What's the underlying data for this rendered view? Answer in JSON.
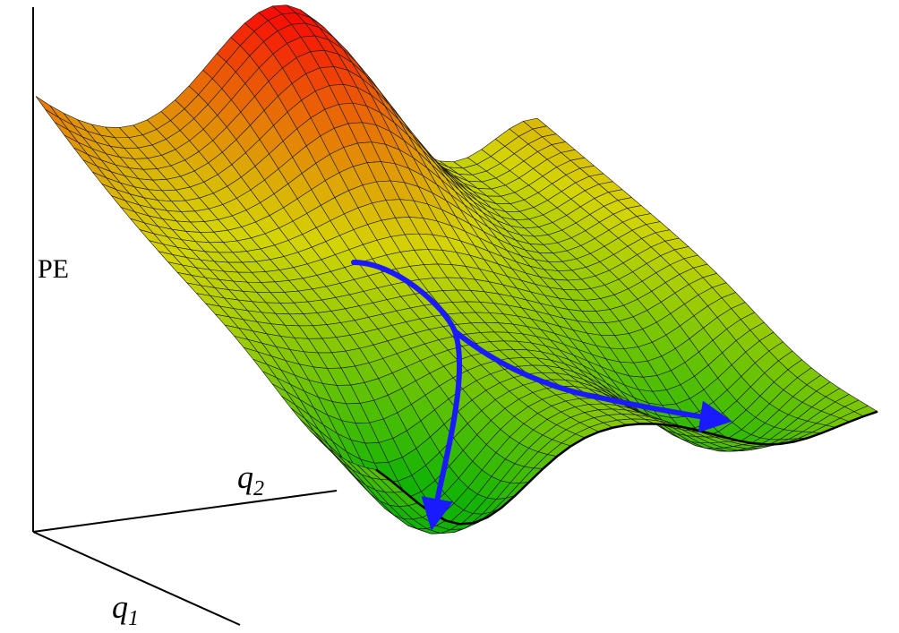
{
  "axes": {
    "vertical": "PE",
    "q1": {
      "base": "q",
      "sub": "1"
    },
    "q2": {
      "base": "q",
      "sub": "2"
    }
  }
}
